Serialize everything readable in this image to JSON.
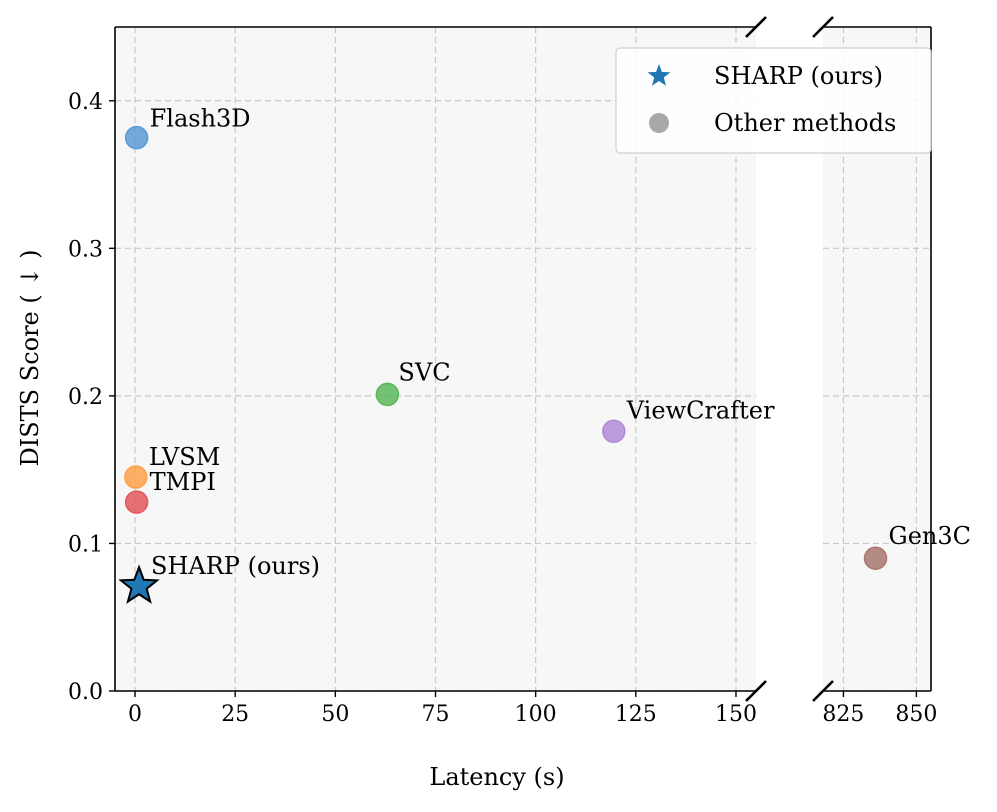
{
  "chart_data": {
    "type": "scatter",
    "xlabel": "Latency (s)",
    "ylabel": "DISTS Score ( ↓ )",
    "ylim": [
      0.0,
      0.45
    ],
    "yticks": [
      0.0,
      0.1,
      0.2,
      0.3,
      0.4
    ],
    "ytick_labels": [
      "0.0",
      "0.1",
      "0.2",
      "0.3",
      "0.4"
    ],
    "broken_x_axis": true,
    "segments": [
      {
        "xlim": [
          -5,
          155
        ],
        "xticks": [
          0,
          25,
          50,
          75,
          100,
          125,
          150
        ],
        "xtick_labels": [
          "0",
          "25",
          "50",
          "75",
          "100",
          "125",
          "150"
        ]
      },
      {
        "xlim": [
          818,
          855
        ],
        "xticks": [
          825,
          850
        ],
        "xtick_labels": [
          "825",
          "850"
        ]
      }
    ],
    "grid": true,
    "points": [
      {
        "name": "Flash3D",
        "x": 0.4,
        "y": 0.375,
        "color": "#5a9bd4",
        "marker": "circle"
      },
      {
        "name": "SVC",
        "x": 63,
        "y": 0.201,
        "color": "#5cb85c",
        "marker": "circle"
      },
      {
        "name": "ViewCrafter",
        "x": 119.5,
        "y": 0.176,
        "color": "#b28ad6",
        "marker": "circle"
      },
      {
        "name": "LVSM",
        "x": 0.2,
        "y": 0.145,
        "color": "#ffa04a",
        "marker": "circle"
      },
      {
        "name": "TMPI",
        "x": 0.4,
        "y": 0.128,
        "color": "#e0585e",
        "marker": "circle"
      },
      {
        "name": "SHARP (ours)",
        "x": 1.0,
        "y": 0.071,
        "color": "#1f77b4",
        "marker": "star"
      },
      {
        "name": "Gen3C",
        "x": 836,
        "y": 0.09,
        "color": "#a8786e",
        "marker": "circle"
      }
    ],
    "legend": {
      "position": "top-right",
      "entries": [
        {
          "label": "SHARP (ours)",
          "marker": "star",
          "color": "#1f77b4"
        },
        {
          "label": "Other methods",
          "marker": "circle",
          "color": "#a8a8a8"
        }
      ]
    }
  }
}
